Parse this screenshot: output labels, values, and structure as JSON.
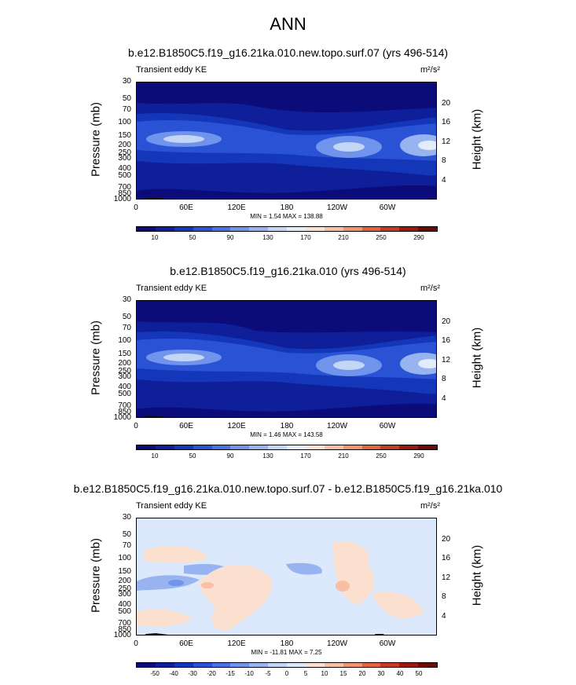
{
  "main_title": "ANN",
  "colors": {
    "level_fill": [
      "#0b0b7a",
      "#0e1f99",
      "#1436b8",
      "#2a52d4",
      "#4b72e3",
      "#7093eb",
      "#98b4f0",
      "#c4d6f5",
      "#e2ecfa",
      "#fbe0cf",
      "#f7c0a4",
      "#f0946d",
      "#e0643f",
      "#c63b1f",
      "#9a1a0f",
      "#6e0a05"
    ],
    "diff_fill": [
      "#0b0b7a",
      "#0e1f99",
      "#1436b8",
      "#2a52d4",
      "#4b72e3",
      "#7093eb",
      "#98b4f0",
      "#c4d6f5",
      "#dce8fb",
      "#fbe0cf",
      "#f7c0a4",
      "#f0946d",
      "#e0643f",
      "#c63b1f",
      "#9a1a0f",
      "#6e0a05"
    ]
  },
  "panels": [
    {
      "title": "b.e12.B1850C5.f19_g16.21ka.010.new.topo.surf.07 (yrs 496-514)",
      "left_title": "Transient eddy KE",
      "units": "m²/s²",
      "minmax": "MIN =  1.54  MAX = 138.88",
      "ylabel": "Pressure (mb)",
      "rlabel": "Height (km)",
      "yticks": [
        "30",
        "50",
        "70",
        "100",
        "150",
        "200",
        "250",
        "300",
        "400",
        "500",
        "700",
        "850",
        "1000"
      ],
      "rticks": [
        "20",
        "16",
        "12",
        "8",
        "4"
      ],
      "xticks": [
        "0",
        "60E",
        "120E",
        "180",
        "120W",
        "60W"
      ],
      "cbar_labels": [
        "10",
        "50",
        "90",
        "130",
        "170",
        "210",
        "250",
        "290"
      ]
    },
    {
      "title": "b.e12.B1850C5.f19_g16.21ka.010 (yrs 496-514)",
      "left_title": "Transient eddy KE",
      "units": "m²/s²",
      "minmax": "MIN =  1.46  MAX = 143.58",
      "ylabel": "Pressure (mb)",
      "rlabel": "Height (km)",
      "yticks": [
        "30",
        "50",
        "70",
        "100",
        "150",
        "200",
        "250",
        "300",
        "400",
        "500",
        "700",
        "850",
        "1000"
      ],
      "rticks": [
        "20",
        "16",
        "12",
        "8",
        "4"
      ],
      "xticks": [
        "0",
        "60E",
        "120E",
        "180",
        "120W",
        "60W"
      ],
      "cbar_labels": [
        "10",
        "50",
        "90",
        "130",
        "170",
        "210",
        "250",
        "290"
      ]
    },
    {
      "title": "b.e12.B1850C5.f19_g16.21ka.010.new.topo.surf.07 - b.e12.B1850C5.f19_g16.21ka.010",
      "left_title": "Transient eddy KE",
      "units": "m²/s²",
      "minmax": "MIN = -11.81  MAX =  7.25",
      "ylabel": "Pressure (mb)",
      "rlabel": "Height (km)",
      "yticks": [
        "30",
        "50",
        "70",
        "100",
        "150",
        "200",
        "250",
        "300",
        "400",
        "500",
        "700",
        "850",
        "1000"
      ],
      "rticks": [
        "20",
        "16",
        "12",
        "8",
        "4"
      ],
      "xticks": [
        "0",
        "60E",
        "120E",
        "180",
        "120W",
        "60W"
      ],
      "cbar_labels": [
        "-50",
        "-40",
        "-30",
        "-20",
        "-15",
        "-10",
        "-5",
        "0",
        "5",
        "10",
        "15",
        "20",
        "30",
        "40",
        "50"
      ]
    }
  ],
  "chart_data": [
    {
      "type": "heatmap",
      "title": "b.e12.B1850C5.f19_g16.21ka.010.new.topo.surf.07 (yrs 496-514)",
      "left_title": "Transient eddy KE",
      "units": "m2/s2",
      "xlabel": "",
      "ylabel": "Pressure (mb)",
      "y2label": "Height (km)",
      "x_ticks": [
        "0",
        "60E",
        "120E",
        "180",
        "120W",
        "60W"
      ],
      "y_ticks_mb": [
        30,
        50,
        70,
        100,
        150,
        200,
        250,
        300,
        400,
        500,
        700,
        850,
        1000
      ],
      "y2_ticks_km": [
        20,
        16,
        12,
        8,
        4
      ],
      "ylim_mb": [
        30,
        1000
      ],
      "y_scale": "log",
      "contour_levels": [
        10,
        30,
        50,
        70,
        90,
        110,
        130,
        150,
        170,
        190,
        210,
        230,
        250,
        270,
        290
      ],
      "min": 1.54,
      "max": 138.88
    },
    {
      "type": "heatmap",
      "title": "b.e12.B1850C5.f19_g16.21ka.010 (yrs 496-514)",
      "left_title": "Transient eddy KE",
      "units": "m2/s2",
      "xlabel": "",
      "ylabel": "Pressure (mb)",
      "y2label": "Height (km)",
      "x_ticks": [
        "0",
        "60E",
        "120E",
        "180",
        "120W",
        "60W"
      ],
      "y_ticks_mb": [
        30,
        50,
        70,
        100,
        150,
        200,
        250,
        300,
        400,
        500,
        700,
        850,
        1000
      ],
      "y2_ticks_km": [
        20,
        16,
        12,
        8,
        4
      ],
      "ylim_mb": [
        30,
        1000
      ],
      "y_scale": "log",
      "contour_levels": [
        10,
        30,
        50,
        70,
        90,
        110,
        130,
        150,
        170,
        190,
        210,
        230,
        250,
        270,
        290
      ],
      "min": 1.46,
      "max": 143.58
    },
    {
      "type": "heatmap",
      "title": "b.e12.B1850C5.f19_g16.21ka.010.new.topo.surf.07 - b.e12.B1850C5.f19_g16.21ka.010",
      "left_title": "Transient eddy KE",
      "units": "m2/s2",
      "xlabel": "",
      "ylabel": "Pressure (mb)",
      "y2label": "Height (km)",
      "x_ticks": [
        "0",
        "60E",
        "120E",
        "180",
        "120W",
        "60W"
      ],
      "y_ticks_mb": [
        30,
        50,
        70,
        100,
        150,
        200,
        250,
        300,
        400,
        500,
        700,
        850,
        1000
      ],
      "y2_ticks_km": [
        20,
        16,
        12,
        8,
        4
      ],
      "ylim_mb": [
        30,
        1000
      ],
      "y_scale": "log",
      "contour_levels": [
        -50,
        -40,
        -30,
        -20,
        -15,
        -10,
        -5,
        0,
        5,
        10,
        15,
        20,
        30,
        40,
        50
      ],
      "min": -11.81,
      "max": 7.25
    }
  ]
}
